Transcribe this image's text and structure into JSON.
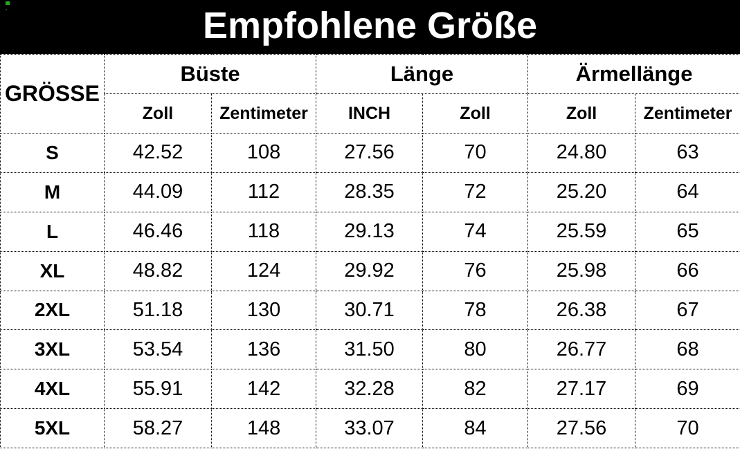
{
  "title": "Empfohlene Größe",
  "table": {
    "size_header": "GRÖSSE",
    "groups": [
      {
        "label": "Büste",
        "sub": [
          "Zoll",
          "Zentimeter"
        ]
      },
      {
        "label": "Länge",
        "sub": [
          "INCH",
          "Zoll"
        ]
      },
      {
        "label": "Ärmellänge",
        "sub": [
          "Zoll",
          "Zentimeter"
        ]
      }
    ],
    "rows": [
      {
        "size": "S",
        "values": [
          "42.52",
          "108",
          "27.56",
          "70",
          "24.80",
          "63"
        ]
      },
      {
        "size": "M",
        "values": [
          "44.09",
          "112",
          "28.35",
          "72",
          "25.20",
          "64"
        ]
      },
      {
        "size": "L",
        "values": [
          "46.46",
          "118",
          "29.13",
          "74",
          "25.59",
          "65"
        ]
      },
      {
        "size": "XL",
        "values": [
          "48.82",
          "124",
          "29.92",
          "76",
          "25.98",
          "66"
        ]
      },
      {
        "size": "2XL",
        "values": [
          "51.18",
          "130",
          "30.71",
          "78",
          "26.38",
          "67"
        ]
      },
      {
        "size": "3XL",
        "values": [
          "53.54",
          "136",
          "31.50",
          "80",
          "26.77",
          "68"
        ]
      },
      {
        "size": "4XL",
        "values": [
          "55.91",
          "142",
          "32.28",
          "82",
          "27.17",
          "69"
        ]
      },
      {
        "size": "5XL",
        "values": [
          "58.27",
          "148",
          "33.07",
          "84",
          "27.56",
          "70"
        ]
      }
    ]
  },
  "colors": {
    "banner_bg": "#000000",
    "banner_text": "#ffffff",
    "table_text": "#000000",
    "border": "#000000"
  },
  "chart_data": {
    "type": "table",
    "title": "Empfohlene Größe",
    "columns": [
      "GRÖSSE",
      "Büste Zoll",
      "Büste Zentimeter",
      "Länge INCH",
      "Länge Zoll",
      "Ärmellänge Zoll",
      "Ärmellänge Zentimeter"
    ],
    "rows": [
      [
        "S",
        42.52,
        108,
        27.56,
        70,
        24.8,
        63
      ],
      [
        "M",
        44.09,
        112,
        28.35,
        72,
        25.2,
        64
      ],
      [
        "L",
        46.46,
        118,
        29.13,
        74,
        25.59,
        65
      ],
      [
        "XL",
        48.82,
        124,
        29.92,
        76,
        25.98,
        66
      ],
      [
        "2XL",
        51.18,
        130,
        30.71,
        78,
        26.38,
        67
      ],
      [
        "3XL",
        53.54,
        136,
        31.5,
        80,
        26.77,
        68
      ],
      [
        "4XL",
        55.91,
        142,
        32.28,
        82,
        27.17,
        69
      ],
      [
        "5XL",
        58.27,
        148,
        33.07,
        84,
        27.56,
        70
      ]
    ]
  }
}
